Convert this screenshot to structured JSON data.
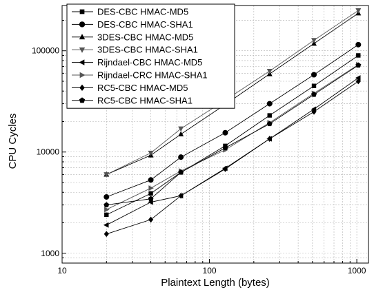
{
  "chart_data": {
    "type": "line",
    "xlabel": "Plaintext Length (bytes)",
    "ylabel": "CPU Cycles",
    "xscale": "log",
    "yscale": "log",
    "xlim": [
      10,
      1200
    ],
    "ylim": [
      800,
      280000
    ],
    "x_ticks": [
      10,
      100,
      1000
    ],
    "x_tick_labels": [
      "10",
      "100",
      "1000"
    ],
    "y_ticks": [
      1000,
      10000,
      100000
    ],
    "y_tick_labels": [
      "1000",
      "10000",
      "100000"
    ],
    "grid": true,
    "legend_position": "top-left",
    "x": [
      20,
      40,
      64,
      128,
      256,
      512,
      1024
    ],
    "series": [
      {
        "name": "DES-CBC HMAC-MD5",
        "marker": "square",
        "values": [
          2400,
          3900,
          6300,
          11500,
          23000,
          45000,
          90000
        ]
      },
      {
        "name": "DES-CBC HMAC-SHA1",
        "marker": "circle",
        "values": [
          3600,
          5300,
          8900,
          15500,
          30000,
          58000,
          115000
        ]
      },
      {
        "name": "3DES-CBC HMAC-MD5",
        "marker": "triangle-up",
        "values": [
          6000,
          9300,
          15000,
          29500,
          59000,
          118000,
          235000
        ]
      },
      {
        "name": "3DES-CBC HMAC-SHA1",
        "marker": "triangle-down",
        "values": [
          6000,
          9800,
          17000,
          32500,
          63000,
          127000,
          250000
        ]
      },
      {
        "name": "Rijndael-CBC HMAC-MD5",
        "marker": "triangle-left",
        "values": [
          1900,
          3200,
          3700,
          6900,
          13500,
          26500,
          54000
        ]
      },
      {
        "name": "Rijndael-CRC HMAC-SHA1",
        "marker": "triangle-right",
        "values": [
          2700,
          4400,
          6500,
          10500,
          19500,
          38000,
          73000
        ]
      },
      {
        "name": "RC5-CBC HMAC-MD5",
        "marker": "diamond",
        "values": [
          1550,
          2150,
          3700,
          6800,
          13500,
          25000,
          50000
        ]
      },
      {
        "name": "RC5-CBC HMAC-SHA1",
        "marker": "pentagon",
        "values": [
          3000,
          3450,
          6300,
          11000,
          19000,
          37000,
          72000
        ]
      }
    ]
  }
}
